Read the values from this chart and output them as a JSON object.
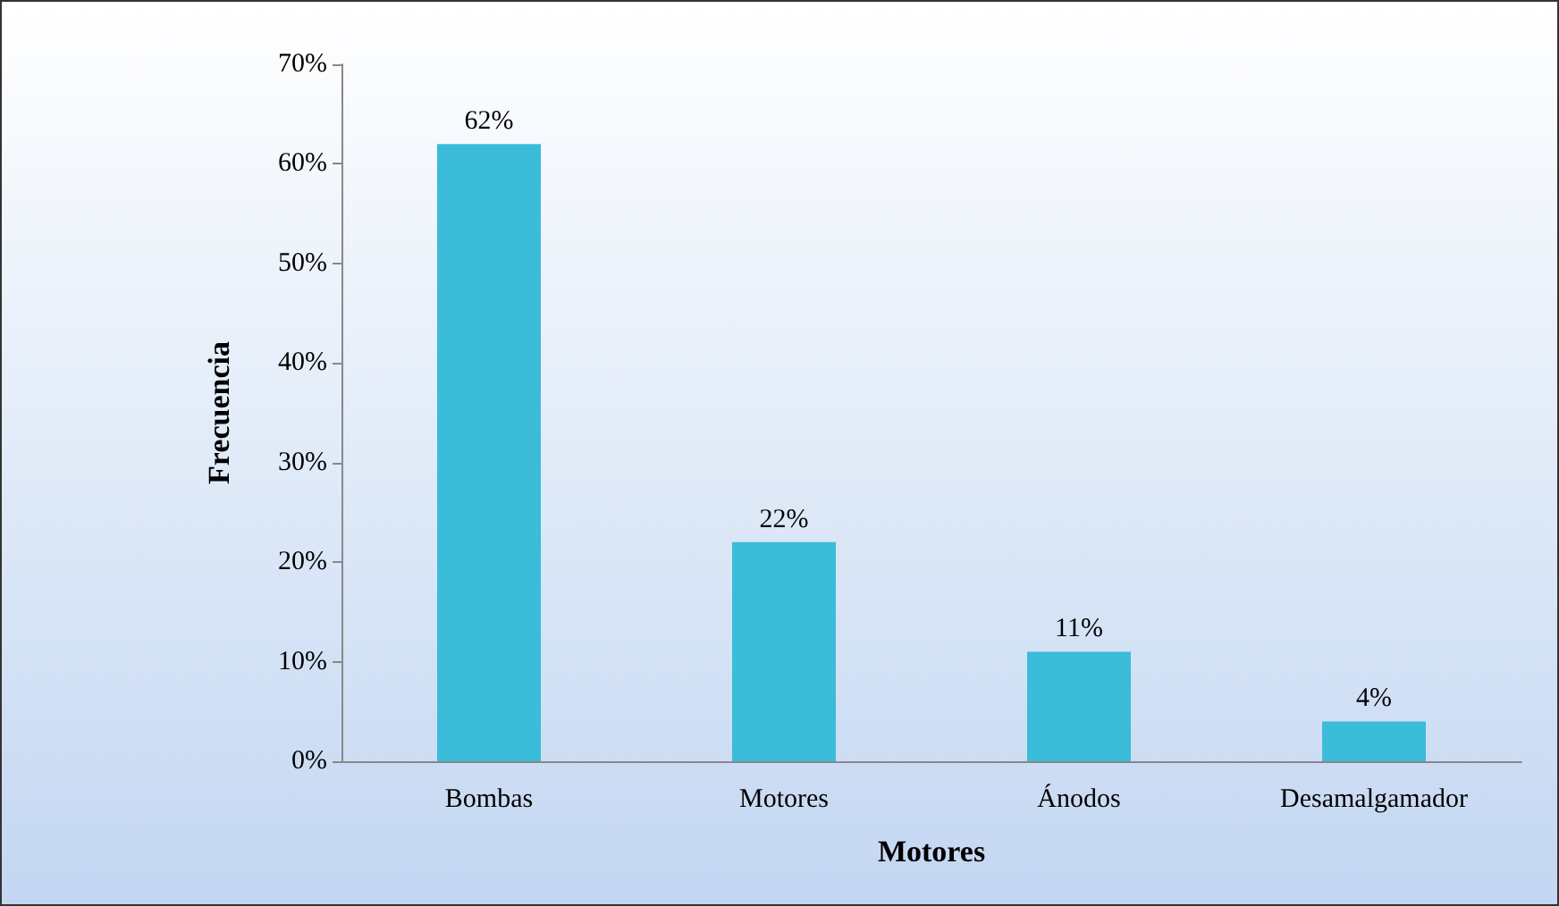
{
  "chart_data": {
    "type": "bar",
    "xlabel": "Motores",
    "ylabel": "Frecuencia",
    "categories": [
      "Bombas",
      "Motores",
      "Ánodos",
      "Desamalgamador"
    ],
    "values": [
      62,
      22,
      11,
      4
    ],
    "color": "#3bbcd9",
    "value_labels": [
      "62%",
      "22%",
      "11%",
      "4%"
    ],
    "ylim": [
      0,
      70
    ],
    "yticks": [
      {
        "value": 0,
        "label": "0%"
      },
      {
        "value": 10,
        "label": "10%"
      },
      {
        "value": 20,
        "label": "20%"
      },
      {
        "value": 30,
        "label": "30%"
      },
      {
        "value": 40,
        "label": "40%"
      },
      {
        "value": 50,
        "label": "50%"
      },
      {
        "value": 60,
        "label": "60%"
      },
      {
        "value": 70,
        "label": "70%"
      }
    ],
    "grid": false
  }
}
